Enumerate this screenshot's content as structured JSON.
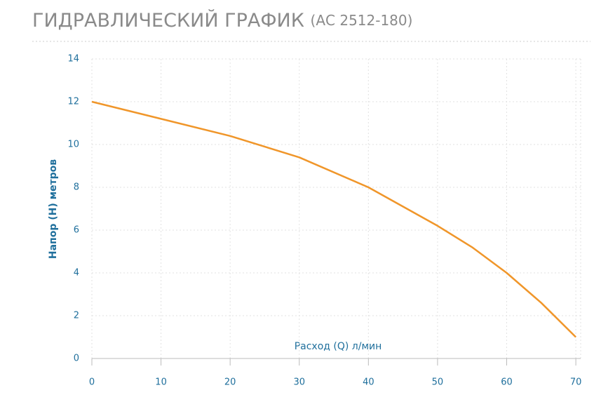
{
  "chart_data": {
    "type": "line",
    "title": "ГИДРАВЛИЧЕСКИЙ ГРАФИК",
    "subtitle": "(АС 2512-180)",
    "x_label": "Расход (Q) л/мин",
    "y_label": "Напор (Н) метров",
    "x": [
      0,
      10,
      20,
      30,
      40,
      50,
      55,
      60,
      65,
      70
    ],
    "series": [
      {
        "name": "АС 2512-180",
        "color": "#f0962a",
        "values": [
          12,
          11.2,
          10.4,
          9.4,
          8,
          6.2,
          5.2,
          4,
          2.6,
          1
        ]
      }
    ],
    "xlim": [
      0,
      70.7
    ],
    "xticks": [
      0,
      10,
      20,
      30,
      40,
      50,
      60,
      70
    ],
    "ylim": [
      0,
      14
    ],
    "yticks": [
      0,
      2,
      4,
      6,
      8,
      10,
      12,
      14
    ],
    "grid": true
  }
}
